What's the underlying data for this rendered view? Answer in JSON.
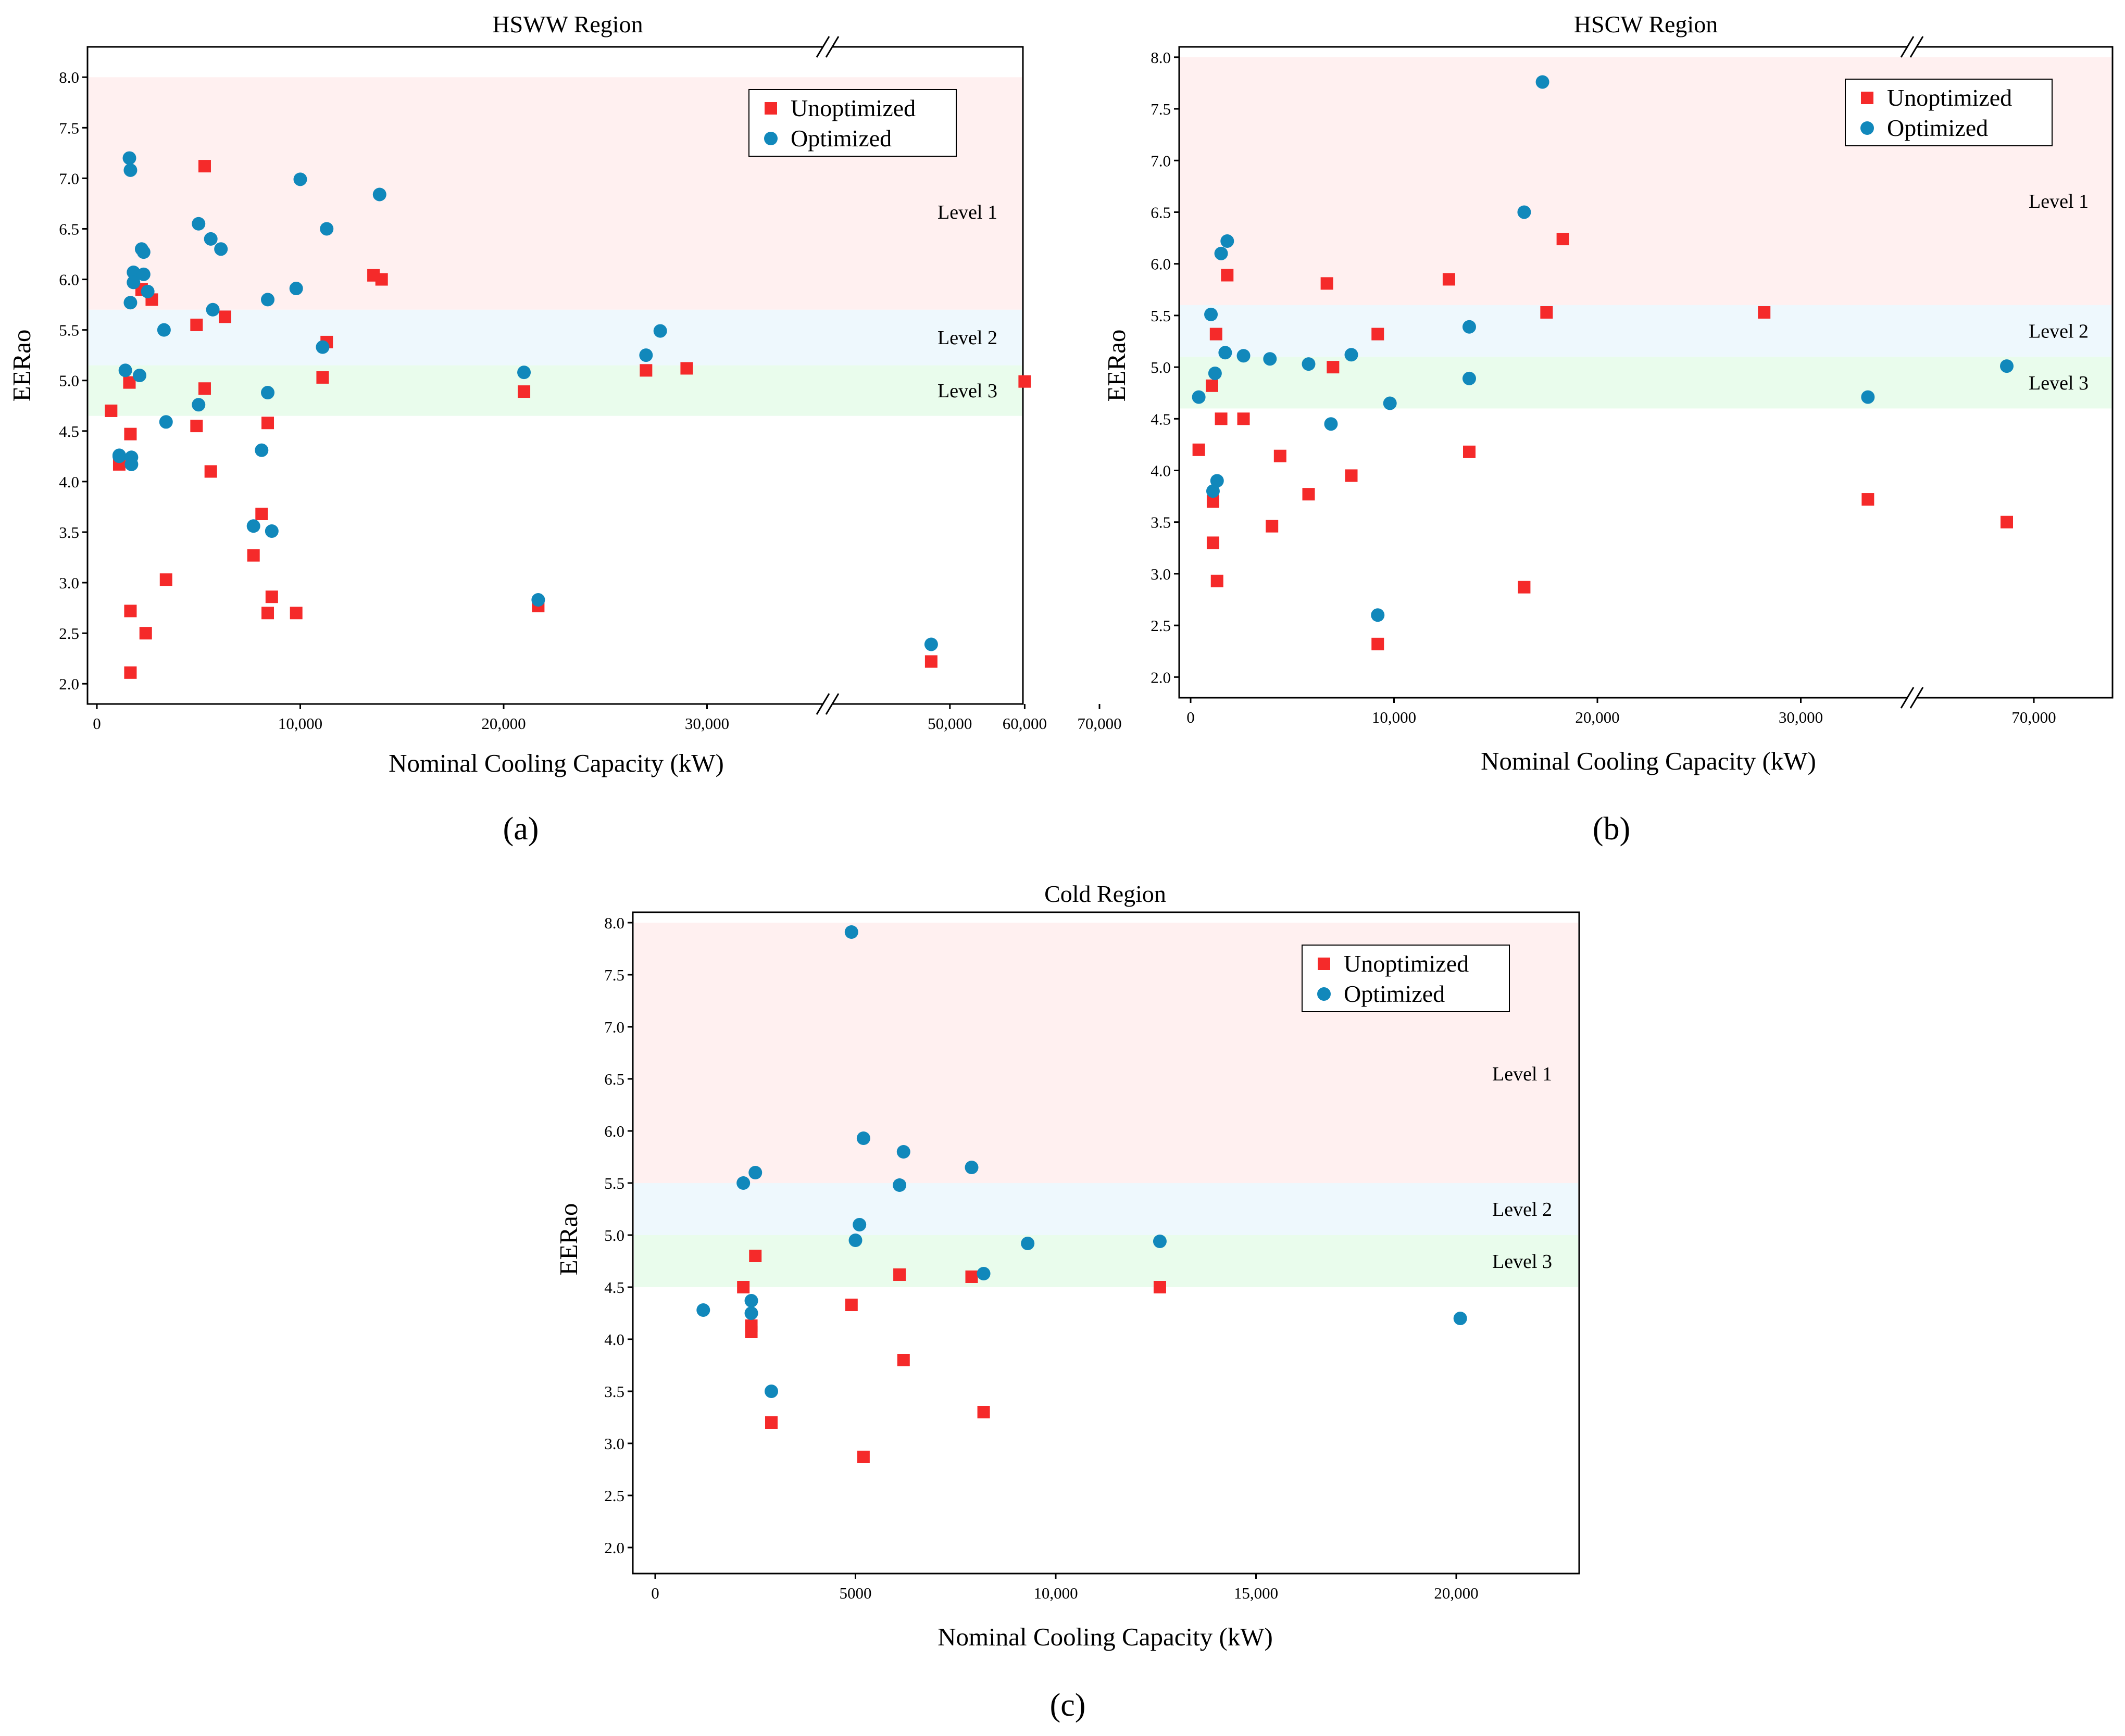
{
  "colors": {
    "unoptimized": "#f52a2a",
    "optimized": "#1188bb",
    "level1": "#fff0f0",
    "level2": "#eef8fd",
    "level3": "#e9fcec"
  },
  "chart_data": [
    {
      "type": "scatter",
      "title": "HSWW Region",
      "xlabel": "Nominal Cooling Capacity (kW)",
      "ylabel": "EERao",
      "caption": "(a)",
      "x_axis_break": [
        35000,
        45000
      ],
      "ylim": [
        1.8,
        8.3
      ],
      "yticks": [
        "2.0",
        "2.5",
        "3.0",
        "3.5",
        "4.0",
        "4.5",
        "5.0",
        "5.5",
        "6.0",
        "6.5",
        "7.0",
        "7.5",
        "8.0"
      ],
      "xtick_labels": [
        "0",
        "10,000",
        "20,000",
        "30,000",
        "50,000",
        "60,000",
        "70,000"
      ],
      "legend": {
        "position": "top-right",
        "entries": [
          "Unoptimized",
          "Optimized"
        ]
      },
      "levels": [
        {
          "name": "Level 1",
          "from": 5.7,
          "to": 8.0
        },
        {
          "name": "Level 2",
          "from": 5.15,
          "to": 5.7
        },
        {
          "name": "Level 3",
          "from": 4.65,
          "to": 5.15
        }
      ],
      "series": [
        {
          "name": "Unoptimized",
          "points": [
            [
              700,
              4.7
            ],
            [
              1100,
              4.17
            ],
            [
              1600,
              4.98
            ],
            [
              1650,
              4.47
            ],
            [
              1650,
              2.72
            ],
            [
              1650,
              2.11
            ],
            [
              2200,
              5.9
            ],
            [
              2400,
              2.5
            ],
            [
              2700,
              5.8
            ],
            [
              3400,
              3.03
            ],
            [
              4900,
              5.55
            ],
            [
              4900,
              4.55
            ],
            [
              5300,
              7.12
            ],
            [
              5300,
              4.92
            ],
            [
              5600,
              4.1
            ],
            [
              6300,
              5.63
            ],
            [
              7700,
              3.27
            ],
            [
              8100,
              3.68
            ],
            [
              8400,
              4.58
            ],
            [
              8400,
              2.7
            ],
            [
              8600,
              2.86
            ],
            [
              9800,
              2.7
            ],
            [
              11100,
              5.03
            ],
            [
              11300,
              5.38
            ],
            [
              13600,
              6.04
            ],
            [
              14000,
              6.0
            ],
            [
              21000,
              4.89
            ],
            [
              21700,
              2.77
            ],
            [
              27000,
              5.1
            ],
            [
              29000,
              5.12
            ],
            [
              47500,
              2.22
            ],
            [
              60000,
              4.99
            ]
          ]
        },
        {
          "name": "Optimized",
          "points": [
            [
              1100,
              4.26
            ],
            [
              1100,
              4.25
            ],
            [
              1400,
              5.1
            ],
            [
              1600,
              7.2
            ],
            [
              1650,
              7.08
            ],
            [
              1650,
              5.77
            ],
            [
              1700,
              4.24
            ],
            [
              1700,
              4.17
            ],
            [
              1800,
              6.07
            ],
            [
              1800,
              5.97
            ],
            [
              2100,
              5.05
            ],
            [
              2200,
              6.3
            ],
            [
              2300,
              6.05
            ],
            [
              2300,
              6.27
            ],
            [
              2500,
              5.88
            ],
            [
              3300,
              5.5
            ],
            [
              3400,
              4.59
            ],
            [
              5000,
              6.55
            ],
            [
              5000,
              4.76
            ],
            [
              5600,
              6.4
            ],
            [
              5700,
              5.7
            ],
            [
              6100,
              6.3
            ],
            [
              7700,
              3.56
            ],
            [
              8100,
              4.31
            ],
            [
              8400,
              5.8
            ],
            [
              8400,
              4.88
            ],
            [
              8600,
              3.51
            ],
            [
              9800,
              5.91
            ],
            [
              10000,
              6.99
            ],
            [
              11100,
              5.33
            ],
            [
              11300,
              6.5
            ],
            [
              13900,
              6.84
            ],
            [
              21000,
              5.08
            ],
            [
              21700,
              2.83
            ],
            [
              27000,
              5.25
            ],
            [
              27700,
              5.49
            ],
            [
              47500,
              2.39
            ]
          ]
        }
      ]
    },
    {
      "type": "scatter",
      "title": "HSCW Region",
      "xlabel": "Nominal Cooling Capacity (kW)",
      "ylabel": "EERao",
      "caption": "(b)",
      "x_axis_break": [
        35000,
        65000
      ],
      "ylim": [
        1.8,
        8.1
      ],
      "yticks": [
        "2.0",
        "2.5",
        "3.0",
        "3.5",
        "4.0",
        "4.5",
        "5.0",
        "5.5",
        "6.0",
        "6.5",
        "7.0",
        "7.5",
        "8.0"
      ],
      "xtick_labels": [
        "0",
        "10,000",
        "20,000",
        "30,000",
        "70,000"
      ],
      "legend": {
        "position": "top-right",
        "entries": [
          "Unoptimized",
          "Optimized"
        ]
      },
      "levels": [
        {
          "name": "Level 1",
          "from": 5.6,
          "to": 8.0
        },
        {
          "name": "Level 2",
          "from": 5.1,
          "to": 5.6
        },
        {
          "name": "Level 3",
          "from": 4.6,
          "to": 5.1
        }
      ],
      "series": [
        {
          "name": "Unoptimized",
          "points": [
            [
              400,
              4.2
            ],
            [
              1050,
              4.82
            ],
            [
              1100,
              3.7
            ],
            [
              1100,
              3.3
            ],
            [
              1250,
              5.32
            ],
            [
              1300,
              2.93
            ],
            [
              1500,
              4.5
            ],
            [
              1800,
              5.89
            ],
            [
              2600,
              4.5
            ],
            [
              4000,
              3.46
            ],
            [
              4400,
              4.14
            ],
            [
              5800,
              3.77
            ],
            [
              6700,
              5.81
            ],
            [
              7000,
              5.0
            ],
            [
              7900,
              3.95
            ],
            [
              9200,
              5.32
            ],
            [
              9200,
              2.32
            ],
            [
              12700,
              5.85
            ],
            [
              13700,
              4.18
            ],
            [
              16400,
              2.87
            ],
            [
              17500,
              5.53
            ],
            [
              18300,
              6.24
            ],
            [
              28200,
              5.53
            ],
            [
              33300,
              3.72
            ],
            [
              68700,
              3.5
            ]
          ]
        },
        {
          "name": "Optimized",
          "points": [
            [
              400,
              4.71
            ],
            [
              1000,
              5.51
            ],
            [
              1100,
              3.8
            ],
            [
              1200,
              4.94
            ],
            [
              1300,
              3.9
            ],
            [
              1500,
              6.1
            ],
            [
              1700,
              5.14
            ],
            [
              1800,
              6.22
            ],
            [
              2600,
              5.11
            ],
            [
              3900,
              5.08
            ],
            [
              5800,
              5.03
            ],
            [
              6900,
              4.45
            ],
            [
              7900,
              5.12
            ],
            [
              9200,
              2.6
            ],
            [
              9800,
              4.65
            ],
            [
              13700,
              5.39
            ],
            [
              13700,
              4.89
            ],
            [
              16400,
              6.5
            ],
            [
              17300,
              7.76
            ],
            [
              33300,
              4.71
            ],
            [
              68700,
              5.01
            ]
          ]
        }
      ]
    },
    {
      "type": "scatter",
      "title": "Cold Region",
      "xlabel": "Nominal Cooling Capacity (kW)",
      "ylabel": "EERao",
      "caption": "(c)",
      "ylim": [
        1.75,
        8.1
      ],
      "yticks": [
        "2.0",
        "2.5",
        "3.0",
        "3.5",
        "4.0",
        "4.5",
        "5.0",
        "5.5",
        "6.0",
        "6.5",
        "7.0",
        "7.5",
        "8.0"
      ],
      "xtick_labels": [
        "0",
        "5000",
        "10,000",
        "15,000",
        "20,000"
      ],
      "legend": {
        "position": "top-right",
        "entries": [
          "Unoptimized",
          "Optimized"
        ]
      },
      "levels": [
        {
          "name": "Level 1",
          "from": 5.5,
          "to": 8.0
        },
        {
          "name": "Level 2",
          "from": 5.0,
          "to": 5.5
        },
        {
          "name": "Level 3",
          "from": 4.5,
          "to": 5.0
        }
      ],
      "series": [
        {
          "name": "Unoptimized",
          "points": [
            [
              2200,
              4.5
            ],
            [
              2400,
              4.13
            ],
            [
              2400,
              4.07
            ],
            [
              2500,
              4.8
            ],
            [
              2900,
              3.2
            ],
            [
              4900,
              4.33
            ],
            [
              5200,
              2.87
            ],
            [
              6100,
              4.62
            ],
            [
              6200,
              3.8
            ],
            [
              7900,
              4.6
            ],
            [
              8200,
              3.3
            ],
            [
              12600,
              4.5
            ]
          ]
        },
        {
          "name": "Optimized",
          "points": [
            [
              1200,
              4.28
            ],
            [
              2200,
              5.5
            ],
            [
              2400,
              4.37
            ],
            [
              2400,
              4.25
            ],
            [
              2500,
              5.6
            ],
            [
              2900,
              3.5
            ],
            [
              4900,
              7.91
            ],
            [
              5000,
              4.95
            ],
            [
              5100,
              5.1
            ],
            [
              5200,
              5.93
            ],
            [
              6100,
              5.48
            ],
            [
              6200,
              5.8
            ],
            [
              7900,
              5.65
            ],
            [
              8200,
              4.63
            ],
            [
              9300,
              4.92
            ],
            [
              12600,
              4.94
            ],
            [
              20100,
              4.2
            ]
          ]
        }
      ]
    }
  ]
}
